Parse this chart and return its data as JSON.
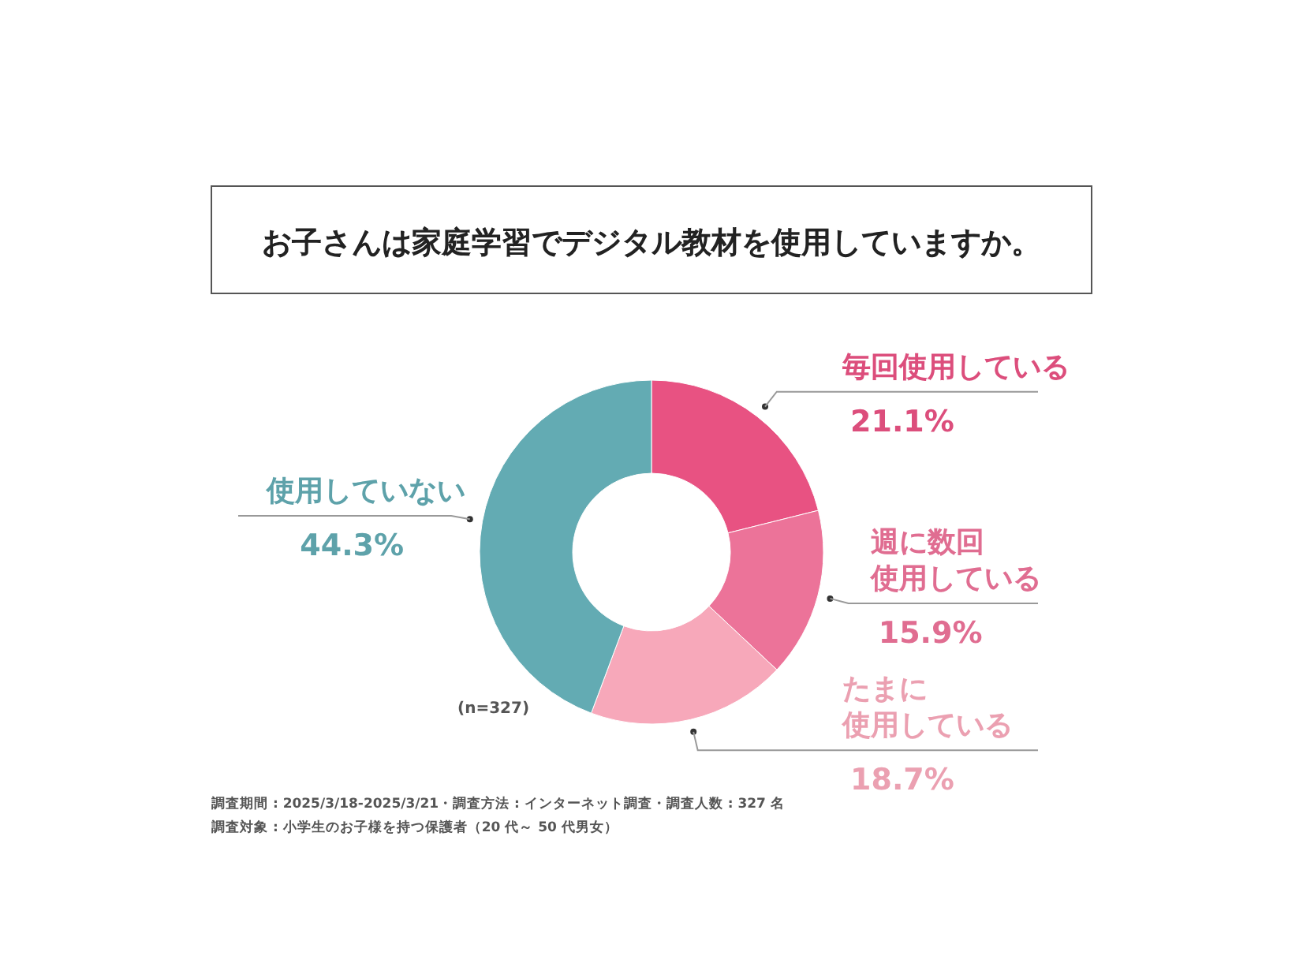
{
  "chart_data": {
    "type": "donut",
    "title": "お子さんは家庭学習でデジタル教材を使用していますか。",
    "categories": [
      "毎回使用している",
      "週に数回使用している",
      "たまに使用している",
      "使用していない"
    ],
    "value_labels": [
      "21.1%",
      "15.9%",
      "18.7%",
      "44.3%"
    ],
    "values": [
      21.1,
      15.9,
      18.7,
      44.3
    ],
    "colors": [
      "#e85282",
      "#ec7399",
      "#f7a8ba",
      "#63abb3"
    ],
    "annotations": [
      "(n=327)",
      "調査期間 : 2025/3/18-2025/3/21・調査方法 : インターネット調査・調査人数 : 327 名",
      "調査対象 : 小学生のお子様を持つ保護者（20 代～ 50 代男女）"
    ]
  }
}
